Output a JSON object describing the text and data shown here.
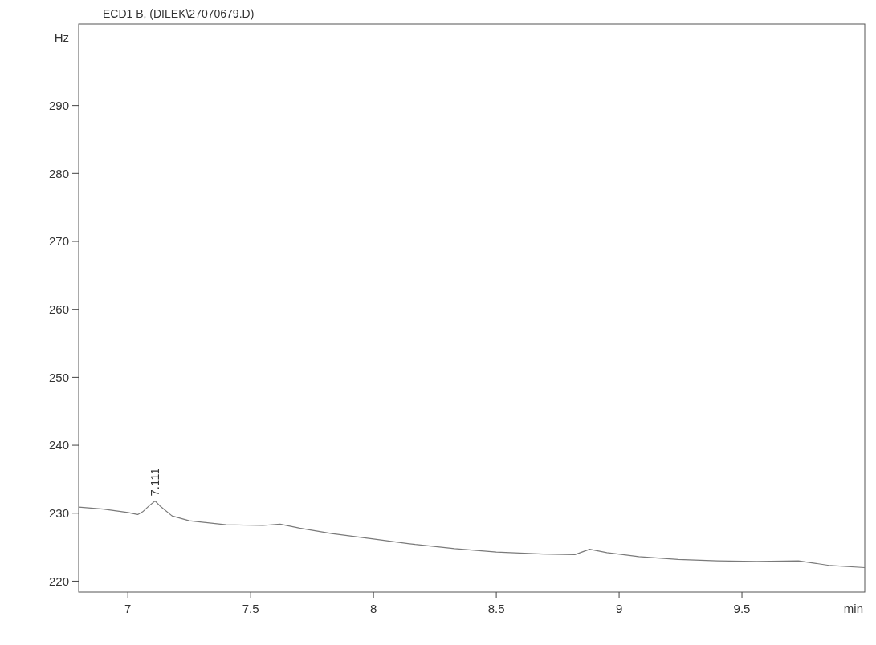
{
  "chart_data": {
    "type": "line",
    "title": "ECD1 B, (DILEK\\27070679.D)",
    "xlabel": "min",
    "ylabel": "Hz",
    "x": [
      6.8,
      6.9,
      7.0,
      7.04,
      7.06,
      7.09,
      7.111,
      7.13,
      7.18,
      7.25,
      7.4,
      7.55,
      7.62,
      7.7,
      7.83,
      8.0,
      8.17,
      8.33,
      8.5,
      8.69,
      8.82,
      8.88,
      8.95,
      9.08,
      9.24,
      9.4,
      9.56,
      9.73,
      9.86,
      10.0
    ],
    "series": [
      {
        "color": "#7a7a7a",
        "values": [
          230.9,
          230.6,
          230.1,
          229.8,
          230.2,
          231.2,
          231.8,
          231.1,
          229.6,
          228.9,
          228.3,
          228.2,
          228.4,
          227.8,
          227.0,
          226.2,
          225.4,
          224.8,
          224.3,
          224.0,
          223.9,
          224.7,
          224.2,
          223.6,
          223.2,
          223.0,
          222.9,
          223.0,
          222.3,
          222.0
        ]
      }
    ],
    "annotations": [
      {
        "text": "7.111",
        "x": 7.111,
        "y": 231.8
      }
    ],
    "xlim": [
      6.8,
      10.0
    ],
    "ylim": [
      218.4,
      302
    ],
    "xticks": [
      7,
      7.5,
      8,
      8.5,
      9,
      9.5
    ],
    "yticks": [
      220,
      230,
      240,
      250,
      260,
      270,
      280,
      290
    ],
    "grid": false,
    "marker": "none",
    "line_style": "solid"
  }
}
